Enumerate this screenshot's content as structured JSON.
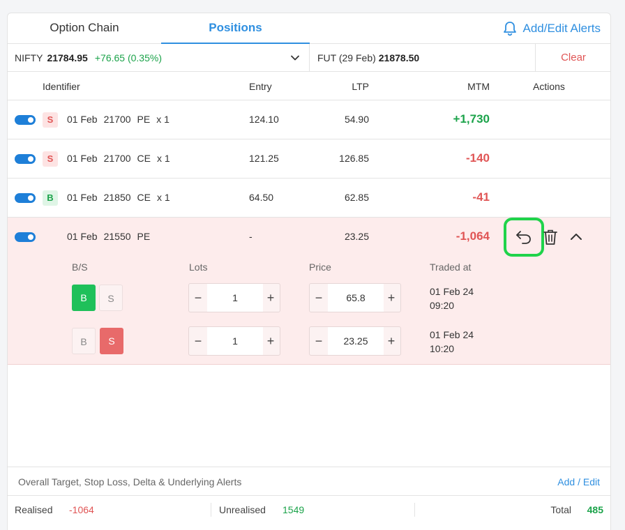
{
  "tabs": {
    "option_chain": "Option Chain",
    "positions": "Positions",
    "alerts_link": "Add/Edit Alerts"
  },
  "ticker": {
    "name": "NIFTY",
    "price": "21784.95",
    "change": "+76.65 (0.35%)",
    "fut_label": "FUT (29 Feb)",
    "fut_price": "21878.50",
    "clear": "Clear"
  },
  "columns": {
    "identifier": "Identifier",
    "entry": "Entry",
    "ltp": "LTP",
    "mtm": "MTM",
    "actions": "Actions"
  },
  "positions": [
    {
      "side": "S",
      "date": "01 Feb",
      "strike": "21700",
      "type": "PE",
      "qty": "x 1",
      "entry": "124.10",
      "ltp": "54.90",
      "mtm": "+1,730",
      "enabled": true
    },
    {
      "side": "S",
      "date": "01 Feb",
      "strike": "21700",
      "type": "CE",
      "qty": "x 1",
      "entry": "121.25",
      "ltp": "126.85",
      "mtm": "-140",
      "enabled": true
    },
    {
      "side": "B",
      "date": "01 Feb",
      "strike": "21850",
      "type": "CE",
      "qty": "x 1",
      "entry": "64.50",
      "ltp": "62.85",
      "mtm": "-41",
      "enabled": true
    },
    {
      "side": "",
      "date": "01 Feb",
      "strike": "21550",
      "type": "PE",
      "qty": "",
      "entry": "-",
      "ltp": "23.25",
      "mtm": "-1,064",
      "enabled": true
    }
  ],
  "legs": {
    "headers": {
      "bs": "B/S",
      "lots": "Lots",
      "price": "Price",
      "traded_at": "Traded at"
    },
    "items": [
      {
        "b": "B",
        "s": "S",
        "active": "B",
        "lots": "1",
        "price": "65.8",
        "traded_date": "01 Feb 24",
        "traded_time": "09:20"
      },
      {
        "b": "B",
        "s": "S",
        "active": "S",
        "lots": "1",
        "price": "23.25",
        "traded_date": "01 Feb 24",
        "traded_time": "10:20"
      }
    ],
    "minus": "−",
    "plus": "+"
  },
  "alerts_bar": {
    "text": "Overall Target, Stop Loss, Delta & Underlying Alerts",
    "link": "Add / Edit"
  },
  "summary": {
    "realised_label": "Realised",
    "realised_value": "-1064",
    "unrealised_label": "Unrealised",
    "unrealised_value": "1549",
    "total_label": "Total",
    "total_value": "485"
  },
  "colors": {
    "accent": "#2f8fe0",
    "green": "#1ba34a",
    "red": "#e05555",
    "highlight": "#1fd34a",
    "expanded_bg": "#fdecec"
  }
}
